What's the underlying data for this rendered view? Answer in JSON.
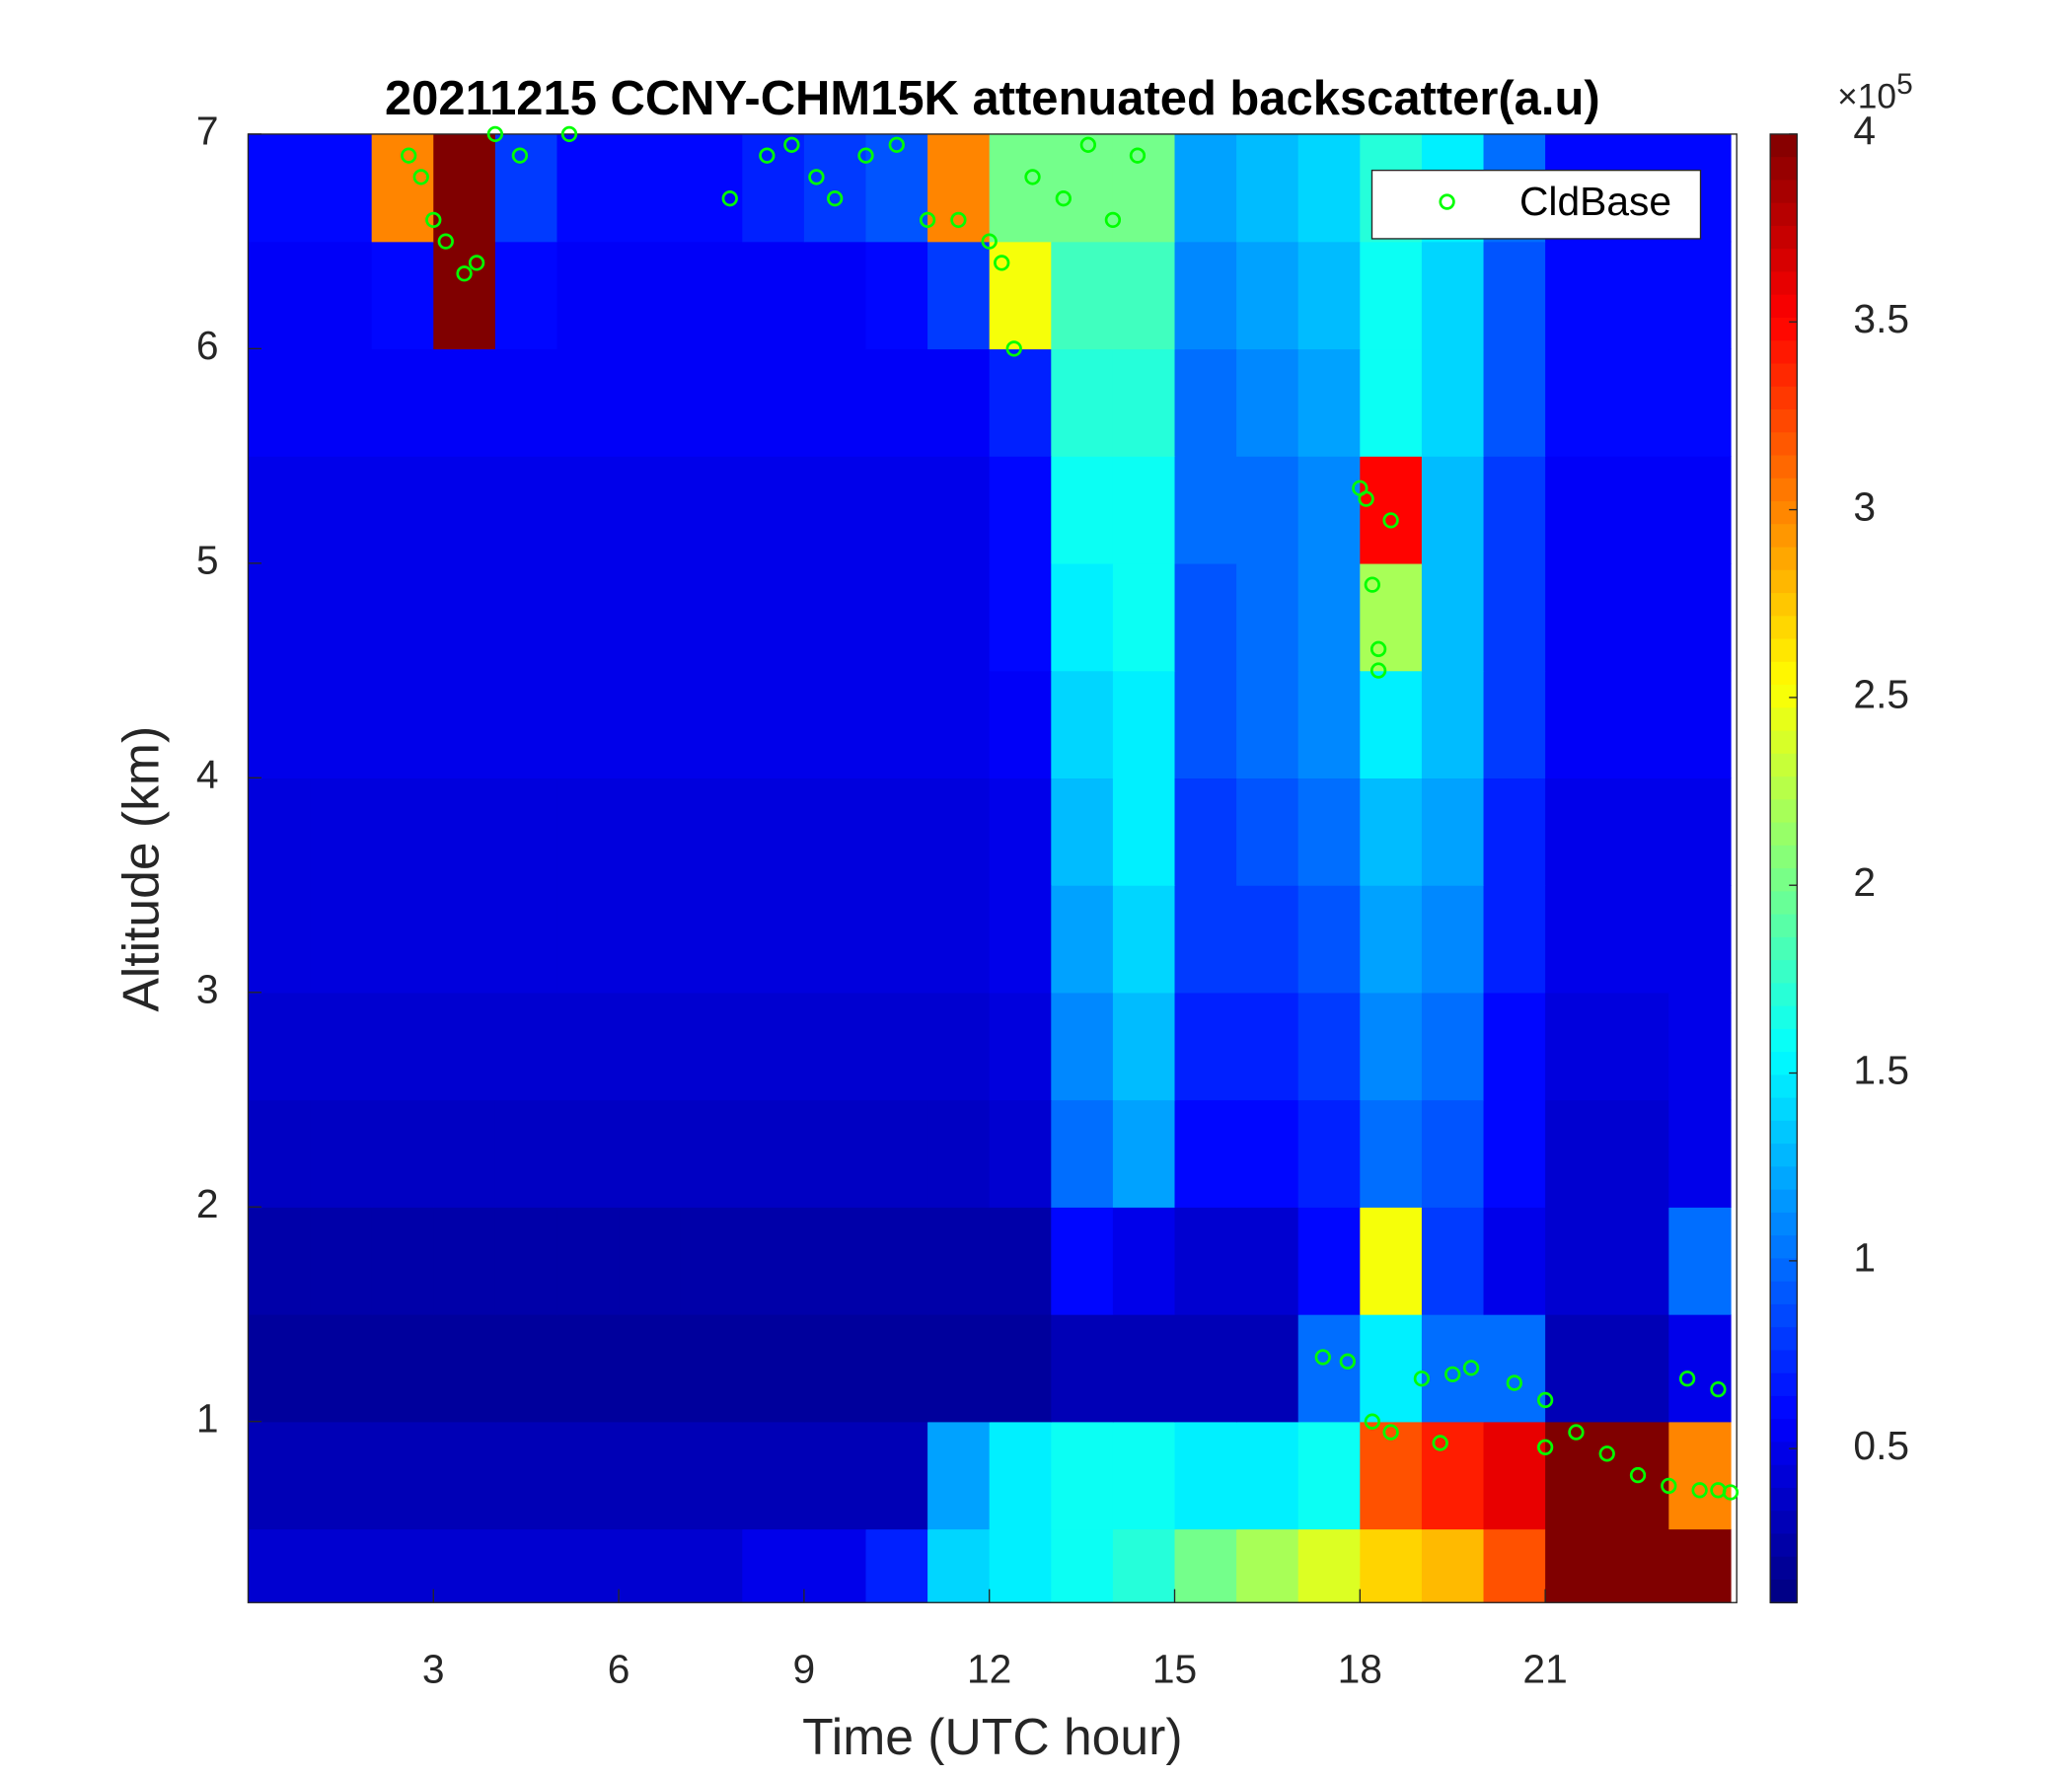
{
  "chart_data": {
    "type": "heatmap",
    "title": "20211215 CCNY-CHM15K attenuated backscatter(a.u)",
    "xlabel": "Time (UTC hour)",
    "ylabel": "Altitude (km)",
    "colormap": "jet",
    "xlim": [
      0,
      24.1
    ],
    "ylim": [
      0.156,
      7
    ],
    "xticks": [
      3,
      6,
      9,
      12,
      15,
      18,
      21
    ],
    "yticks": [
      1,
      2,
      3,
      4,
      5,
      6,
      7
    ],
    "clim": [
      0.09,
      4
    ],
    "colorbar_ticks": [
      0.5,
      1,
      1.5,
      2,
      2.5,
      3,
      3.5,
      4
    ],
    "colorbar_prefix": "×10",
    "colorbar_exponent": 5,
    "x": [
      0.5,
      1.5,
      2.5,
      3.5,
      4.5,
      5.5,
      6.5,
      7.5,
      8.5,
      9.5,
      10.5,
      11.5,
      12.5,
      13.5,
      14.5,
      15.5,
      16.5,
      17.5,
      18.5,
      19.5,
      20.5,
      21.5,
      22.5,
      23.5
    ],
    "y": [
      0.25,
      0.75,
      1.25,
      1.75,
      2.25,
      2.75,
      3.25,
      3.75,
      4.25,
      4.75,
      5.25,
      5.75,
      6.25,
      6.75
    ],
    "z": [
      [
        0.4,
        0.4,
        0.4,
        0.4,
        0.4,
        0.4,
        0.4,
        0.4,
        0.5,
        0.5,
        0.7,
        1.4,
        1.5,
        1.6,
        1.7,
        2.0,
        2.2,
        2.4,
        2.7,
        2.8,
        3.2,
        4,
        4,
        4
      ],
      [
        0.3,
        0.3,
        0.3,
        0.3,
        0.3,
        0.3,
        0.3,
        0.3,
        0.3,
        0.3,
        0.3,
        1.2,
        1.5,
        1.6,
        1.6,
        1.5,
        1.5,
        1.6,
        3.2,
        3.4,
        3.6,
        4,
        4,
        3
      ],
      [
        0.2,
        0.2,
        0.2,
        0.2,
        0.2,
        0.2,
        0.2,
        0.2,
        0.2,
        0.2,
        0.2,
        0.2,
        0.2,
        0.3,
        0.3,
        0.3,
        0.3,
        1,
        1.5,
        1,
        1,
        0.3,
        0.3,
        0.5
      ],
      [
        0.25,
        0.25,
        0.25,
        0.25,
        0.25,
        0.25,
        0.25,
        0.25,
        0.25,
        0.25,
        0.25,
        0.25,
        0.25,
        0.6,
        0.5,
        0.4,
        0.4,
        0.6,
        2.5,
        0.8,
        0.5,
        0.4,
        0.4,
        1
      ],
      [
        0.35,
        0.35,
        0.35,
        0.35,
        0.35,
        0.35,
        0.35,
        0.35,
        0.35,
        0.35,
        0.35,
        0.35,
        0.4,
        1,
        1.2,
        0.6,
        0.6,
        0.7,
        1,
        0.9,
        0.6,
        0.4,
        0.4,
        0.5
      ],
      [
        0.4,
        0.4,
        0.4,
        0.4,
        0.4,
        0.4,
        0.4,
        0.4,
        0.4,
        0.4,
        0.4,
        0.4,
        0.45,
        1.1,
        1.3,
        0.7,
        0.7,
        0.8,
        1.1,
        1,
        0.6,
        0.45,
        0.45,
        0.5
      ],
      [
        0.45,
        0.45,
        0.45,
        0.45,
        0.45,
        0.45,
        0.45,
        0.45,
        0.45,
        0.45,
        0.45,
        0.45,
        0.5,
        1.2,
        1.4,
        0.8,
        0.8,
        0.9,
        1.2,
        1.1,
        0.7,
        0.5,
        0.5,
        0.5
      ],
      [
        0.45,
        0.45,
        0.45,
        0.45,
        0.45,
        0.45,
        0.45,
        0.45,
        0.45,
        0.45,
        0.45,
        0.45,
        0.5,
        1.3,
        1.5,
        0.8,
        0.9,
        1,
        1.3,
        1.2,
        0.7,
        0.5,
        0.5,
        0.5
      ],
      [
        0.5,
        0.5,
        0.5,
        0.5,
        0.5,
        0.5,
        0.5,
        0.5,
        0.5,
        0.5,
        0.5,
        0.5,
        0.55,
        1.4,
        1.5,
        0.9,
        1,
        1.1,
        1.5,
        1.3,
        0.8,
        0.55,
        0.55,
        0.55
      ],
      [
        0.5,
        0.5,
        0.5,
        0.5,
        0.5,
        0.5,
        0.5,
        0.5,
        0.5,
        0.5,
        0.5,
        0.5,
        0.6,
        1.5,
        1.6,
        0.9,
        1,
        1.1,
        2.2,
        1.3,
        0.8,
        0.55,
        0.55,
        0.55
      ],
      [
        0.5,
        0.5,
        0.5,
        0.5,
        0.5,
        0.5,
        0.5,
        0.5,
        0.5,
        0.5,
        0.5,
        0.5,
        0.6,
        1.6,
        1.6,
        1,
        1,
        1.1,
        3.5,
        1.3,
        0.8,
        0.55,
        0.55,
        0.55
      ],
      [
        0.55,
        0.55,
        0.55,
        0.55,
        0.55,
        0.55,
        0.55,
        0.55,
        0.55,
        0.55,
        0.55,
        0.55,
        0.7,
        1.7,
        1.7,
        1,
        1.1,
        1.2,
        1.6,
        1.4,
        0.9,
        0.6,
        0.6,
        0.6
      ],
      [
        0.55,
        0.55,
        0.6,
        4,
        0.6,
        0.55,
        0.55,
        0.55,
        0.55,
        0.55,
        0.6,
        0.8,
        2.5,
        1.8,
        1.8,
        1.1,
        1.2,
        1.3,
        1.6,
        1.4,
        0.9,
        0.6,
        0.6,
        0.6
      ],
      [
        0.6,
        0.6,
        3,
        4,
        0.8,
        0.6,
        0.6,
        0.6,
        0.7,
        0.8,
        0.9,
        3,
        2,
        2,
        2,
        1.2,
        1.3,
        1.4,
        1.7,
        1.5,
        1,
        0.6,
        0.6,
        0.6
      ]
    ],
    "legend": "upper right",
    "series": [
      {
        "name": "CldBase",
        "color": "#00ff00",
        "x": [
          2.6,
          2.8,
          3.0,
          3.2,
          3.5,
          3.7,
          4,
          4.4,
          5.2,
          7.8,
          8.4,
          8.8,
          9.2,
          9.5,
          10,
          10.5,
          11,
          11.5,
          12,
          12.2,
          12.4,
          12.7,
          13.2,
          13.6,
          14,
          14.4,
          18,
          18.1,
          18.5,
          18.2,
          18.3,
          18.3,
          17.4,
          17.8,
          18.2,
          18.5,
          19,
          19.3,
          19.5,
          19.8,
          20.5,
          21,
          21,
          21.5,
          22,
          22.5,
          23,
          23.3,
          23.5,
          23.8,
          23.8,
          24
        ],
        "values": [
          6.9,
          6.8,
          6.6,
          6.5,
          6.35,
          6.4,
          7,
          6.9,
          7,
          6.7,
          6.9,
          6.95,
          6.8,
          6.7,
          6.9,
          6.95,
          6.6,
          6.6,
          6.5,
          6.4,
          6.0,
          6.8,
          6.7,
          6.95,
          6.6,
          6.9,
          5.35,
          5.3,
          5.2,
          4.9,
          4.6,
          4.5,
          1.3,
          1.28,
          1.0,
          0.95,
          1.2,
          0.9,
          1.22,
          1.25,
          1.18,
          1.1,
          0.88,
          0.95,
          0.85,
          0.75,
          0.7,
          1.2,
          0.68,
          0.68,
          1.15,
          0.67
        ]
      }
    ]
  }
}
